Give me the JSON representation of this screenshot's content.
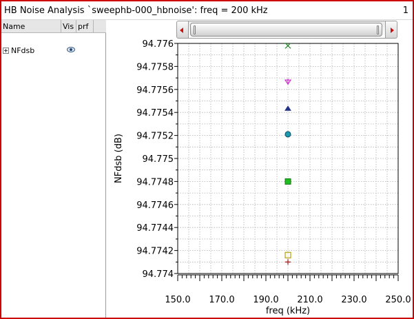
{
  "window": {
    "title": "HB Noise Analysis `sweephb-000_hbnoise': freq = 200 kHz",
    "number": "1",
    "border_color": "#cc0000"
  },
  "sidebar": {
    "columns": [
      "Name",
      "Vis",
      "prf"
    ],
    "items": [
      {
        "label": "NFdsb",
        "expander_icon": "plus-expander-icon",
        "vis_icon": "eye-icon"
      }
    ]
  },
  "scrollbar": {
    "left_icon": "scroll-left-arrow-icon",
    "right_icon": "scroll-right-arrow-icon",
    "arrow_color": "#cc1010"
  },
  "chart_data": {
    "type": "scatter",
    "xlabel": "freq (kHz)",
    "ylabel": "NFdsb (dB)",
    "xlim": [
      150,
      250
    ],
    "ylim": [
      94.774,
      94.776
    ],
    "x_ticks": [
      "150.0",
      "170.0",
      "190.0",
      "210.0",
      "230.0",
      "250.0"
    ],
    "x_tick_values": [
      150,
      170,
      190,
      210,
      230,
      250
    ],
    "y_ticks": [
      "94.776",
      "94.7758",
      "94.7756",
      "94.7754",
      "94.7752",
      "94.775",
      "94.7748",
      "94.7746",
      "94.7744",
      "94.7742",
      "94.774"
    ],
    "y_tick_values": [
      94.776,
      94.7758,
      94.7756,
      94.7754,
      94.7752,
      94.775,
      94.7748,
      94.7746,
      94.7744,
      94.7742,
      94.774
    ],
    "grid": true,
    "series": [
      {
        "marker": "x",
        "color": "#2e8b2e",
        "points": [
          [
            200,
            94.77598
          ]
        ]
      },
      {
        "marker": "down-triangle",
        "color": "#cc33cc",
        "points": [
          [
            200,
            94.77567
          ]
        ]
      },
      {
        "marker": "up-triangle",
        "color": "#223388",
        "points": [
          [
            200,
            94.77543
          ]
        ]
      },
      {
        "marker": "circle",
        "color": "#1a9bb0",
        "points": [
          [
            200,
            94.77521
          ]
        ]
      },
      {
        "marker": "square",
        "color": "#22bb22",
        "points": [
          [
            200,
            94.7748
          ]
        ]
      },
      {
        "marker": "open-square",
        "color": "#b8a000",
        "points": [
          [
            200,
            94.77416
          ]
        ]
      },
      {
        "marker": "plus",
        "color": "#aa2222",
        "points": [
          [
            200,
            94.7741
          ]
        ]
      }
    ]
  }
}
